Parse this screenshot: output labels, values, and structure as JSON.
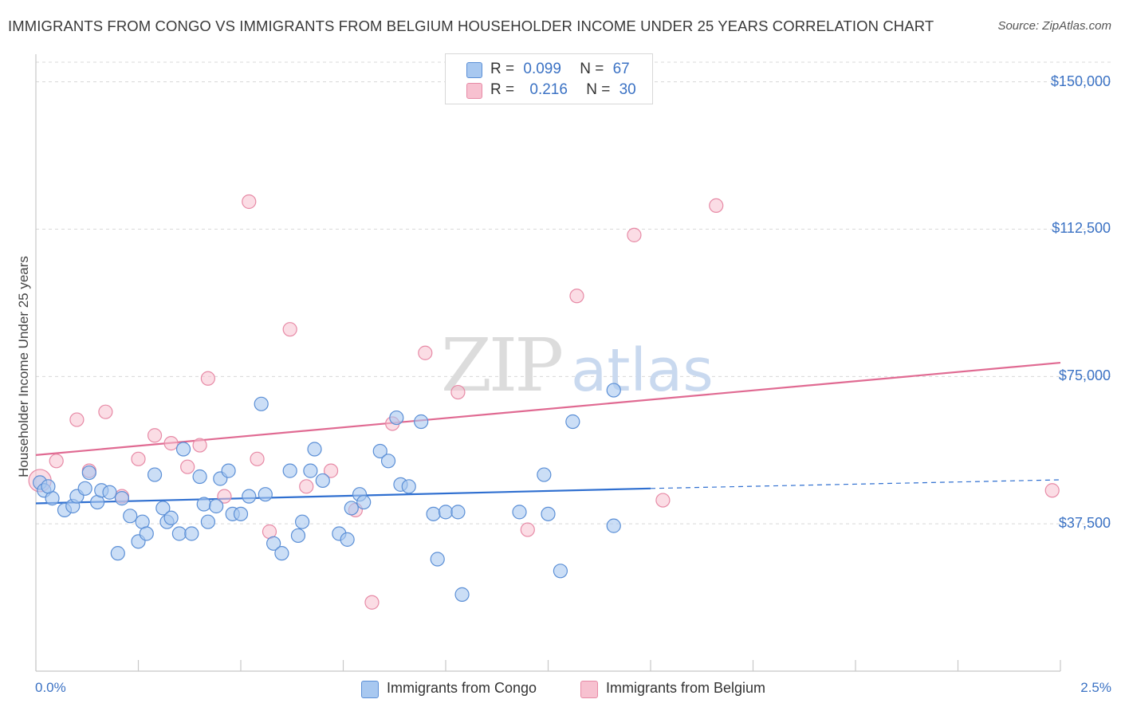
{
  "title": "IMMIGRANTS FROM CONGO VS IMMIGRANTS FROM BELGIUM HOUSEHOLDER INCOME UNDER 25 YEARS CORRELATION CHART",
  "source": "Source: ZipAtlas.com",
  "watermark": {
    "zip": "ZIP",
    "atlas": "atlas"
  },
  "legend": {
    "r_label": "R =",
    "n_label": "N =",
    "rows": [
      {
        "r": "0.099",
        "n": "67"
      },
      {
        "r": "0.216",
        "n": "30"
      }
    ]
  },
  "colors": {
    "congo_fill": "#a8c8f0",
    "congo_stroke": "#5b8fd6",
    "congo_line": "#2f6fd0",
    "belgium_fill": "#f7c1d0",
    "belgium_stroke": "#e78aa6",
    "belgium_line": "#e06a92",
    "axis_value": "#3b72c4",
    "grid": "#d8d8d8"
  },
  "chart_data": {
    "type": "scatter",
    "title": "IMMIGRANTS FROM CONGO VS IMMIGRANTS FROM BELGIUM HOUSEHOLDER INCOME UNDER 25 YEARS CORRELATION CHART",
    "xlabel": "",
    "ylabel": "Householder Income Under 25 years",
    "xlim": [
      0.0,
      2.5
    ],
    "ylim": [
      0,
      155000
    ],
    "x_tick_labels": [
      "0.0%",
      "2.5%"
    ],
    "y_ticks": [
      37500,
      75000,
      112500,
      150000
    ],
    "y_tick_labels": [
      "$37,500",
      "$75,000",
      "$112,500",
      "$150,000"
    ],
    "grid": "horizontal dashed",
    "legend_position": "top-center",
    "series": [
      {
        "name": "Immigrants from Congo",
        "r": 0.099,
        "n": 67,
        "trend": {
          "x": [
            0.0,
            1.5
          ],
          "y": [
            42700,
            46500
          ],
          "dashed_extension_to": [
            2.5,
            48700
          ]
        },
        "points": [
          [
            0.01,
            48000
          ],
          [
            0.02,
            46000
          ],
          [
            0.04,
            44000
          ],
          [
            0.07,
            41000
          ],
          [
            0.09,
            42000
          ],
          [
            0.1,
            44500
          ],
          [
            0.12,
            46500
          ],
          [
            0.13,
            50500
          ],
          [
            0.15,
            43000
          ],
          [
            0.16,
            46000
          ],
          [
            0.18,
            45500
          ],
          [
            0.2,
            30000
          ],
          [
            0.21,
            44000
          ],
          [
            0.23,
            39500
          ],
          [
            0.25,
            33000
          ],
          [
            0.26,
            38000
          ],
          [
            0.27,
            35000
          ],
          [
            0.29,
            50000
          ],
          [
            0.31,
            41500
          ],
          [
            0.32,
            38000
          ],
          [
            0.33,
            39000
          ],
          [
            0.35,
            35000
          ],
          [
            0.36,
            56500
          ],
          [
            0.38,
            35000
          ],
          [
            0.4,
            49500
          ],
          [
            0.41,
            42500
          ],
          [
            0.42,
            38000
          ],
          [
            0.44,
            42000
          ],
          [
            0.45,
            49000
          ],
          [
            0.47,
            51000
          ],
          [
            0.48,
            40000
          ],
          [
            0.5,
            40000
          ],
          [
            0.52,
            44500
          ],
          [
            0.55,
            68000
          ],
          [
            0.56,
            45000
          ],
          [
            0.58,
            32500
          ],
          [
            0.6,
            30000
          ],
          [
            0.62,
            51000
          ],
          [
            0.64,
            34500
          ],
          [
            0.65,
            38000
          ],
          [
            0.67,
            51000
          ],
          [
            0.68,
            56500
          ],
          [
            0.7,
            48500
          ],
          [
            0.74,
            35000
          ],
          [
            0.76,
            33500
          ],
          [
            0.77,
            41500
          ],
          [
            0.79,
            45000
          ],
          [
            0.8,
            43000
          ],
          [
            0.84,
            56000
          ],
          [
            0.86,
            53500
          ],
          [
            0.88,
            64500
          ],
          [
            0.89,
            47500
          ],
          [
            0.91,
            47000
          ],
          [
            0.94,
            63500
          ],
          [
            0.97,
            40000
          ],
          [
            0.98,
            28500
          ],
          [
            1.0,
            40500
          ],
          [
            1.03,
            40500
          ],
          [
            1.04,
            19500
          ],
          [
            1.18,
            40500
          ],
          [
            1.24,
            50000
          ],
          [
            1.25,
            40000
          ],
          [
            1.28,
            25500
          ],
          [
            1.31,
            63500
          ],
          [
            1.41,
            71500
          ],
          [
            1.41,
            37000
          ],
          [
            0.03,
            47000
          ]
        ]
      },
      {
        "name": "Immigrants from Belgium",
        "r": 0.216,
        "n": 30,
        "trend": {
          "x": [
            0.0,
            2.5
          ],
          "y": [
            55000,
            78500
          ]
        },
        "points": [
          [
            0.01,
            48500
          ],
          [
            0.05,
            53500
          ],
          [
            0.1,
            64000
          ],
          [
            0.13,
            51000
          ],
          [
            0.17,
            66000
          ],
          [
            0.21,
            44500
          ],
          [
            0.25,
            54000
          ],
          [
            0.29,
            60000
          ],
          [
            0.33,
            58000
          ],
          [
            0.37,
            52000
          ],
          [
            0.4,
            57500
          ],
          [
            0.42,
            74500
          ],
          [
            0.46,
            44500
          ],
          [
            0.52,
            119500
          ],
          [
            0.54,
            54000
          ],
          [
            0.57,
            35500
          ],
          [
            0.62,
            87000
          ],
          [
            0.66,
            47000
          ],
          [
            0.72,
            51000
          ],
          [
            0.78,
            41000
          ],
          [
            0.82,
            17500
          ],
          [
            0.87,
            63000
          ],
          [
            0.95,
            81000
          ],
          [
            1.03,
            71000
          ],
          [
            1.2,
            36000
          ],
          [
            1.32,
            95500
          ],
          [
            1.46,
            111000
          ],
          [
            1.53,
            43500
          ],
          [
            1.66,
            118500
          ],
          [
            2.48,
            46000
          ]
        ]
      }
    ]
  },
  "bottom_legend": [
    "Immigrants from Congo",
    "Immigrants from Belgium"
  ]
}
